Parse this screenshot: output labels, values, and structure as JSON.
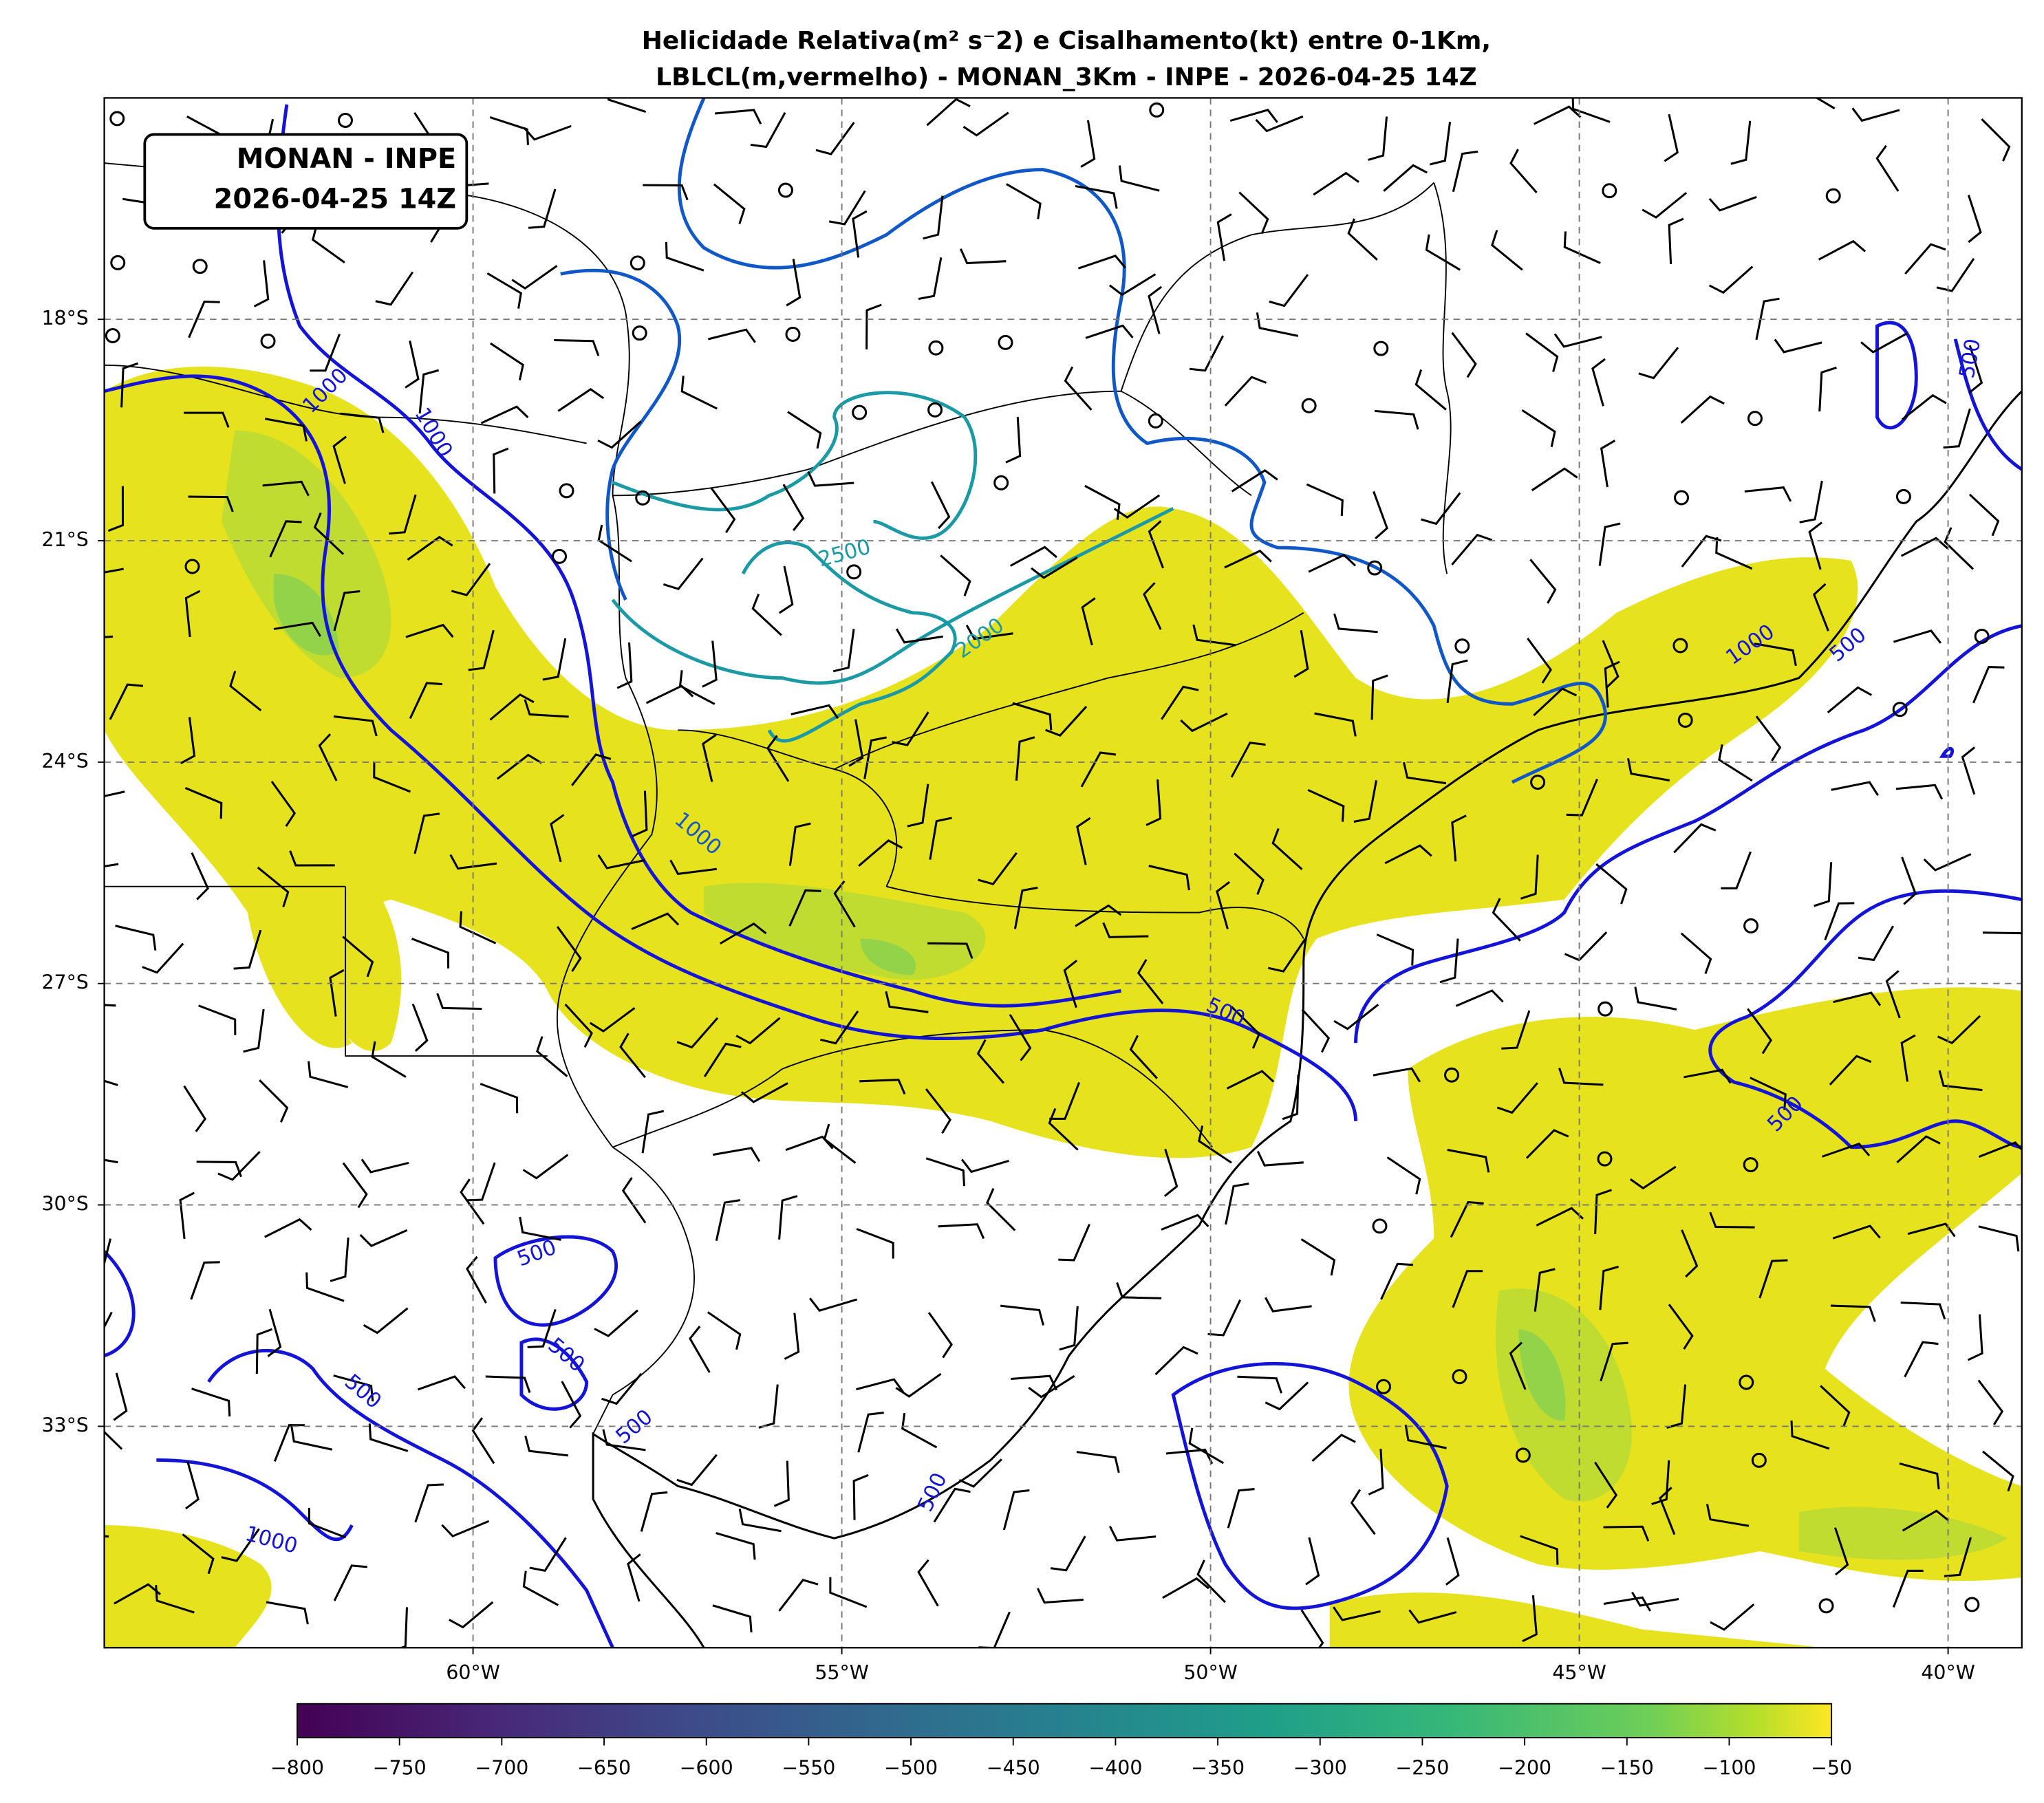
{
  "title": [
    "Helicidade Relativa(m² s⁻2) e Cisalhamento(kt) entre 0-1Km,",
    "LBLCL(m,vermelho) - MONAN_3Km - INPE - 2026-04-25 14Z"
  ],
  "info_box": [
    "MONAN - INPE",
    "2026-04-25 14Z"
  ],
  "map": {
    "lon_range": [
      -65,
      -39
    ],
    "lat_range": [
      -36,
      -15
    ],
    "lat_ticks": [
      {
        "value": -18,
        "label": "18°S"
      },
      {
        "value": -21,
        "label": "21°S"
      },
      {
        "value": -24,
        "label": "24°S"
      },
      {
        "value": -27,
        "label": "27°S"
      },
      {
        "value": -30,
        "label": "30°S"
      },
      {
        "value": -33,
        "label": "33°S"
      }
    ],
    "lon_ticks": [
      {
        "value": -60,
        "label": "60°W"
      },
      {
        "value": -55,
        "label": "55°W"
      },
      {
        "value": -50,
        "label": "50°W"
      },
      {
        "value": -45,
        "label": "45°W"
      },
      {
        "value": -40,
        "label": "40°W"
      }
    ],
    "contour_labels": [
      "1000",
      "1000",
      "2500",
      "2000",
      "1000",
      "500",
      "1000",
      "500",
      "500",
      "500",
      "500",
      "500",
      "1000",
      "500",
      "500",
      "500"
    ]
  },
  "colorbar": {
    "range": [
      -800,
      -50
    ],
    "ticks": [
      {
        "value": -800,
        "label": "−800"
      },
      {
        "value": -750,
        "label": "−750"
      },
      {
        "value": -700,
        "label": "−700"
      },
      {
        "value": -650,
        "label": "−650"
      },
      {
        "value": -600,
        "label": "−600"
      },
      {
        "value": -550,
        "label": "−550"
      },
      {
        "value": -500,
        "label": "−500"
      },
      {
        "value": -450,
        "label": "−450"
      },
      {
        "value": -400,
        "label": "−400"
      },
      {
        "value": -350,
        "label": "−350"
      },
      {
        "value": -300,
        "label": "−300"
      },
      {
        "value": -250,
        "label": "−250"
      },
      {
        "value": -200,
        "label": "−200"
      },
      {
        "value": -150,
        "label": "−150"
      },
      {
        "value": -100,
        "label": "−100"
      },
      {
        "value": -50,
        "label": "−50"
      }
    ]
  }
}
